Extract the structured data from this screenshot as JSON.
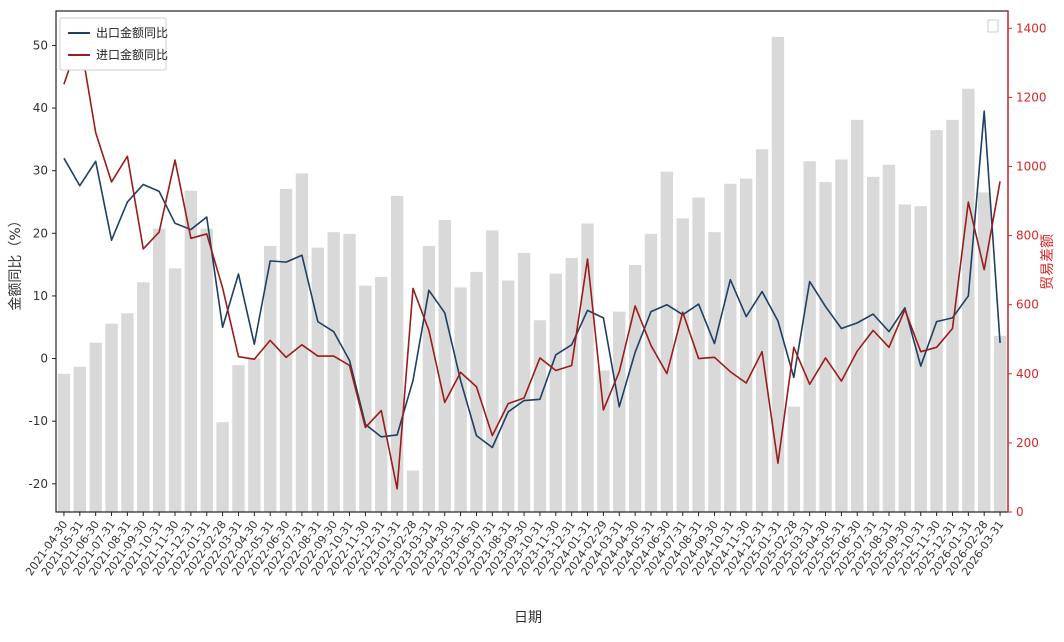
{
  "chart_data": {
    "type": "bar+line",
    "xlabel": "日期",
    "ylabel_left": "金额同比（%）",
    "ylabel_right": "贸易差额",
    "ylim_left": [
      -24.5,
      55.5
    ],
    "ylim_right": [
      0,
      1450
    ],
    "yticks_left": [
      -20,
      -10,
      0,
      10,
      20,
      30,
      40,
      50
    ],
    "yticks_right": [
      0,
      200,
      400,
      600,
      800,
      1000,
      1200,
      1400
    ],
    "legend_position": "top-left",
    "colors": {
      "export": "#1f3f63",
      "import": "#9b1c1c",
      "bars": "#d9d9d9",
      "right_axis": "#d62728"
    },
    "x": [
      "2021-04-30",
      "2021-05-31",
      "2021-06-30",
      "2021-07-31",
      "2021-08-31",
      "2021-09-30",
      "2021-10-31",
      "2021-11-30",
      "2021-12-31",
      "2022-01-31",
      "2022-02-28",
      "2022-03-31",
      "2022-04-30",
      "2022-05-31",
      "2022-06-30",
      "2022-07-31",
      "2022-08-31",
      "2022-09-30",
      "2022-10-31",
      "2022-11-30",
      "2022-12-31",
      "2023-01-31",
      "2023-02-28",
      "2023-03-31",
      "2023-04-30",
      "2023-05-31",
      "2023-06-30",
      "2023-07-31",
      "2023-08-31",
      "2023-09-30",
      "2023-10-31",
      "2023-11-30",
      "2023-12-31",
      "2024-01-31",
      "2024-02-29",
      "2024-03-31",
      "2024-04-30",
      "2024-05-31",
      "2024-06-30",
      "2024-07-31",
      "2024-08-31",
      "2024-09-30",
      "2024-10-31",
      "2024-11-30",
      "2024-12-31",
      "2025-01-31",
      "2025-02-28",
      "2025-03-31",
      "2025-04-30",
      "2025-05-31",
      "2025-06-30",
      "2025-07-31",
      "2025-08-31",
      "2025-09-30",
      "2025-10-31",
      "2025-11-30",
      "2025-12-31",
      "2026-01-31",
      "2026-02-28",
      "2026-03-31"
    ],
    "bars": {
      "name": "贸易差额",
      "values": [
        400,
        420,
        490,
        545,
        575,
        665,
        820,
        705,
        930,
        820,
        260,
        425,
        445,
        770,
        935,
        980,
        765,
        810,
        805,
        655,
        680,
        915,
        120,
        770,
        845,
        650,
        695,
        815,
        670,
        750,
        555,
        690,
        735,
        835,
        410,
        580,
        715,
        805,
        985,
        850,
        910,
        810,
        950,
        965,
        1050,
        1375,
        305,
        1015,
        955,
        1020,
        1135,
        970,
        1005,
        890,
        885,
        1105,
        1135,
        1225,
        925,
        510
      ]
    },
    "series": [
      {
        "name": "出口金额同比",
        "values": [
          32,
          27.6,
          31.5,
          18.9,
          25,
          27.8,
          26.7,
          21.6,
          20.6,
          22.6,
          5,
          13.5,
          2.3,
          15.6,
          15.4,
          16.5,
          5.9,
          4.3,
          -0.3,
          -10.5,
          -12.5,
          -12.2,
          -3.5,
          10.9,
          7.3,
          -3.5,
          -12.3,
          -14.2,
          -8.5,
          -6.7,
          -6.5,
          0.6,
          2.2,
          7.7,
          6.5,
          -7.7,
          1,
          7.5,
          8.6,
          7,
          8.7,
          2.4,
          12.6,
          6.7,
          10.7,
          6,
          -3,
          12.3,
          8.3,
          4.8,
          5.7,
          7.1,
          4.3,
          8.1,
          -1.2,
          5.9,
          6.5,
          10,
          39.5,
          2.5
        ]
      },
      {
        "name": "进口金额同比",
        "values": [
          43.8,
          51.2,
          36.1,
          28.2,
          32.3,
          17.5,
          20.2,
          31.7,
          19.2,
          19.9,
          11.3,
          0.3,
          -0.1,
          2.9,
          0.2,
          2.2,
          0.4,
          0.4,
          -1.1,
          -11,
          -8.3,
          -20.8,
          11.2,
          4.5,
          -7,
          -2.2,
          -4.5,
          -12.3,
          -7.2,
          -6.3,
          0.1,
          -1.9,
          -1.1,
          15.9,
          -8.2,
          -2.1,
          8.4,
          2.1,
          -2.4,
          7.4,
          0,
          0.2,
          -2.1,
          -3.9,
          1.1,
          -16.7,
          1.8,
          -4.1,
          0.1,
          -3.6,
          1.2,
          4.5,
          1.8,
          7.8,
          1.1,
          1.8,
          4.8,
          25,
          14.2,
          28.3
        ]
      }
    ]
  }
}
